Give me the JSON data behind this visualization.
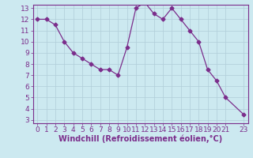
{
  "x": [
    0,
    1,
    2,
    3,
    4,
    5,
    6,
    7,
    8,
    9,
    10,
    11,
    12,
    13,
    14,
    15,
    16,
    17,
    18,
    19,
    20,
    21,
    23
  ],
  "y": [
    12,
    12,
    11.5,
    10,
    9,
    8.5,
    8,
    7.5,
    7.5,
    7,
    9.5,
    13,
    13.5,
    12.5,
    12,
    13,
    12,
    11,
    10,
    7.5,
    6.5,
    5,
    3.5
  ],
  "line_color": "#7b2d8b",
  "marker": "D",
  "marker_size": 2.5,
  "bg_color": "#cce9f0",
  "grid_color": "#b0cdd8",
  "xlabel": "Windchill (Refroidissement éolien,°C)",
  "xlabel_color": "#7b2d8b",
  "tick_color": "#7b2d8b",
  "ylim_min": 3,
  "ylim_max": 13,
  "xlim_min": -0.5,
  "xlim_max": 23.5,
  "yticks": [
    3,
    4,
    5,
    6,
    7,
    8,
    9,
    10,
    11,
    12,
    13
  ],
  "xticks": [
    0,
    1,
    2,
    3,
    4,
    5,
    6,
    7,
    8,
    9,
    10,
    11,
    12,
    13,
    14,
    15,
    16,
    17,
    18,
    19,
    20,
    21,
    23
  ],
  "xtick_labels": [
    "0",
    "1",
    "2",
    "3",
    "4",
    "5",
    "6",
    "7",
    "8",
    "9",
    "10",
    "11",
    "12",
    "13",
    "14",
    "15",
    "16",
    "17",
    "18",
    "19",
    "20",
    "21",
    "23"
  ],
  "font_size": 6.5,
  "xlabel_fontsize": 7
}
